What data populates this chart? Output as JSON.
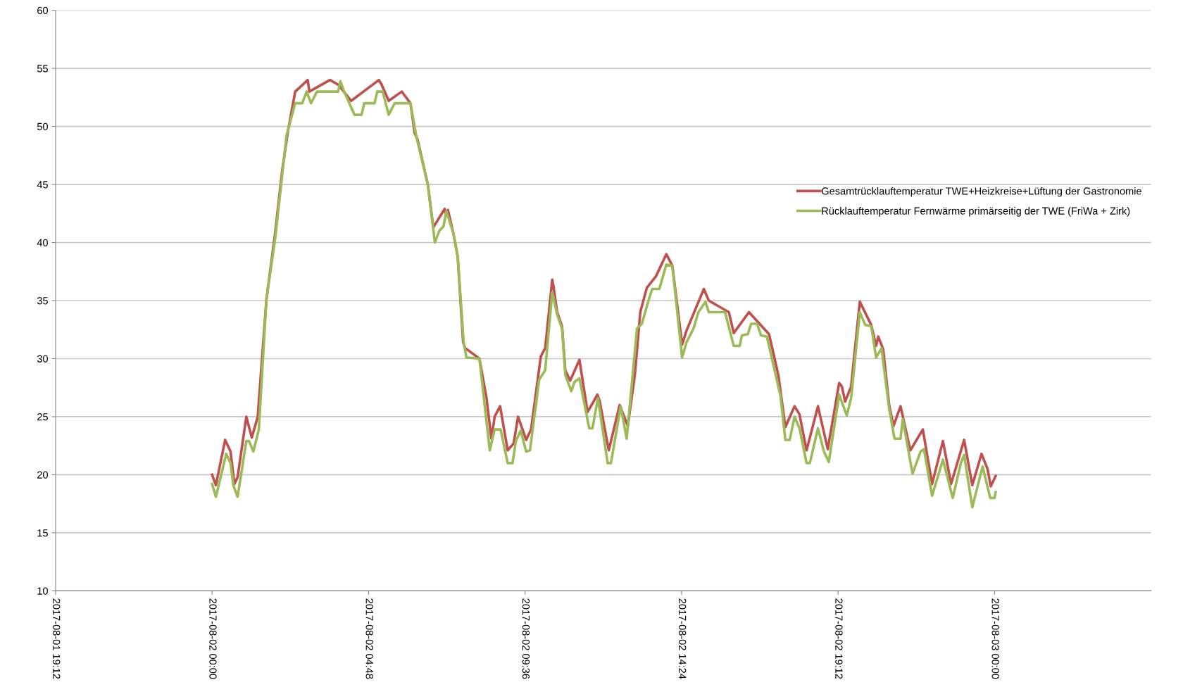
{
  "chart_data": {
    "type": "line",
    "xlim": [
      "2017-08-01T19:12",
      "2017-08-03T04:48"
    ],
    "xticks": [
      {
        "value": "2017-08-01T19:12",
        "label": "2017-08-01 19:12"
      },
      {
        "value": "2017-08-02T00:00",
        "label": "2017-08-02 00:00"
      },
      {
        "value": "2017-08-02T04:48",
        "label": "2017-08-02 04:48"
      },
      {
        "value": "2017-08-02T09:36",
        "label": "2017-08-02 09:36"
      },
      {
        "value": "2017-08-02T14:24",
        "label": "2017-08-02 14:24"
      },
      {
        "value": "2017-08-02T19:12",
        "label": "2017-08-02 19:12"
      },
      {
        "value": "2017-08-03T00:00",
        "label": "2017-08-03 00:00"
      }
    ],
    "ylim": [
      10,
      60
    ],
    "yticks": [
      10,
      15,
      20,
      25,
      30,
      35,
      40,
      45,
      50,
      55,
      60
    ],
    "grid": "y",
    "legend": "right",
    "line_style": "solid",
    "series": [
      {
        "name": "Gesamtrücklauftemperatur TWE+Heizkreise+Lüftung der Gastronomie",
        "color": "#c0504d",
        "x": [
          "2017-08-02T00:00",
          "2017-08-02T00:07",
          "2017-08-02T00:24",
          "2017-08-02T00:34",
          "2017-08-02T00:41",
          "2017-08-02T00:47",
          "2017-08-02T01:03",
          "2017-08-02T01:13",
          "2017-08-02T01:24",
          "2017-08-02T01:40",
          "2017-08-02T01:56",
          "2017-08-02T02:09",
          "2017-08-02T02:20",
          "2017-08-02T02:33",
          "2017-08-02T02:56",
          "2017-08-02T02:59",
          "2017-08-02T03:37",
          "2017-08-02T03:52",
          "2017-08-02T04:16",
          "2017-08-02T05:07",
          "2017-08-02T05:12",
          "2017-08-02T05:25",
          "2017-08-02T05:49",
          "2017-08-02T06:05",
          "2017-08-02T06:13",
          "2017-08-02T06:18",
          "2017-08-02T06:37",
          "2017-08-02T06:47",
          "2017-08-02T07:08",
          "2017-08-02T07:11",
          "2017-08-02T07:14",
          "2017-08-02T07:24",
          "2017-08-02T07:32",
          "2017-08-02T07:42",
          "2017-08-02T07:46",
          "2017-08-02T08:12",
          "2017-08-02T08:25",
          "2017-08-02T08:34",
          "2017-08-02T08:40",
          "2017-08-02T08:50",
          "2017-08-02T09:04",
          "2017-08-02T09:15",
          "2017-08-02T09:23",
          "2017-08-02T09:38",
          "2017-08-02T09:47",
          "2017-08-02T10:05",
          "2017-08-02T10:13",
          "2017-08-02T10:26",
          "2017-08-02T10:28",
          "2017-08-02T10:35",
          "2017-08-02T10:44",
          "2017-08-02T10:50",
          "2017-08-02T10:59",
          "2017-08-02T11:16",
          "2017-08-02T11:31",
          "2017-08-02T11:42",
          "2017-08-02T11:49",
          "2017-08-02T11:53",
          "2017-08-02T12:10",
          "2017-08-02T12:30",
          "2017-08-02T12:45",
          "2017-08-02T12:58",
          "2017-08-02T13:08",
          "2017-08-02T13:20",
          "2017-08-02T13:37",
          "2017-08-02T13:56",
          "2017-08-02T14:07",
          "2017-08-02T14:25",
          "2017-08-02T14:33",
          "2017-08-02T15:05",
          "2017-08-02T15:14",
          "2017-08-02T15:51",
          "2017-08-02T16:00",
          "2017-08-02T16:28",
          "2017-08-02T17:05",
          "2017-08-02T17:22",
          "2017-08-02T17:35",
          "2017-08-02T17:52",
          "2017-08-02T18:01",
          "2017-08-02T18:14",
          "2017-08-02T18:35",
          "2017-08-02T18:53",
          "2017-08-02T19:14",
          "2017-08-02T19:19",
          "2017-08-02T19:25",
          "2017-08-02T19:36",
          "2017-08-02T19:52",
          "2017-08-02T20:13",
          "2017-08-02T20:22",
          "2017-08-02T20:26",
          "2017-08-02T20:35",
          "2017-08-02T20:46",
          "2017-08-02T20:54",
          "2017-08-02T21:07",
          "2017-08-02T21:25",
          "2017-08-02T21:48",
          "2017-08-02T22:05",
          "2017-08-02T22:25",
          "2017-08-02T22:40",
          "2017-08-02T23:04",
          "2017-08-02T23:19",
          "2017-08-02T23:36",
          "2017-08-02T23:47",
          "2017-08-02T23:53",
          "2017-08-03T00:02"
        ],
        "values": [
          20,
          19.1,
          23,
          22,
          19.2,
          19.8,
          25,
          23.2,
          25,
          35.1,
          40.8,
          46.2,
          49.7,
          53,
          54,
          53,
          54,
          53.6,
          52.2,
          54,
          53.6,
          52.2,
          53,
          52,
          49.4,
          48.9,
          45,
          41.3,
          42.9,
          42.3,
          42.8,
          40.8,
          38.8,
          31.4,
          30.9,
          30,
          26.6,
          23.1,
          25,
          25.9,
          22.1,
          22.7,
          25,
          23,
          23.9,
          30.2,
          30.9,
          36.8,
          36.3,
          34,
          32.8,
          29,
          28.1,
          29.9,
          25.4,
          26.3,
          26.9,
          26.4,
          22.1,
          26,
          24.2,
          28.6,
          34,
          36.1,
          37.1,
          39,
          38,
          31.2,
          32.4,
          36,
          35,
          34,
          32.2,
          34,
          32.1,
          28.6,
          24.1,
          25.9,
          25.2,
          22.1,
          25.9,
          22.2,
          27.9,
          27.6,
          26.3,
          27.6,
          34.9,
          32.9,
          31.1,
          31.9,
          30.8,
          26,
          24.2,
          25.9,
          22.1,
          23.9,
          19.2,
          22.9,
          19.2,
          23,
          19.1,
          21.8,
          20.5,
          19,
          19.9
        ]
      },
      {
        "name": "Rücklauftemperatur Fernwärme primärseitig der TWE (FriWa + Zirk)",
        "color": "#9bbb59",
        "x": [
          "2017-08-02T00:00",
          "2017-08-02T00:07",
          "2017-08-02T00:26",
          "2017-08-02T00:34",
          "2017-08-02T00:39",
          "2017-08-02T00:47",
          "2017-08-02T01:03",
          "2017-08-02T01:08",
          "2017-08-02T01:16",
          "2017-08-02T01:26",
          "2017-08-02T01:40",
          "2017-08-02T01:56",
          "2017-08-02T02:17",
          "2017-08-02T02:33",
          "2017-08-02T02:46",
          "2017-08-02T02:54",
          "2017-08-02T03:02",
          "2017-08-02T03:13",
          "2017-08-02T03:52",
          "2017-08-02T03:56",
          "2017-08-02T04:03",
          "2017-08-02T04:22",
          "2017-08-02T04:35",
          "2017-08-02T04:40",
          "2017-08-02T04:59",
          "2017-08-02T05:04",
          "2017-08-02T05:14",
          "2017-08-02T05:25",
          "2017-08-02T05:36",
          "2017-08-02T06:05",
          "2017-08-02T06:16",
          "2017-08-02T06:37",
          "2017-08-02T06:50",
          "2017-08-02T06:58",
          "2017-08-02T07:06",
          "2017-08-02T07:11",
          "2017-08-02T07:24",
          "2017-08-02T07:32",
          "2017-08-02T07:43",
          "2017-08-02T07:48",
          "2017-08-02T08:12",
          "2017-08-02T08:31",
          "2017-08-02T08:40",
          "2017-08-02T08:51",
          "2017-08-02T09:04",
          "2017-08-02T09:13",
          "2017-08-02T09:19",
          "2017-08-02T09:28",
          "2017-08-02T09:38",
          "2017-08-02T09:45",
          "2017-08-02T10:02",
          "2017-08-02T10:13",
          "2017-08-02T10:26",
          "2017-08-02T10:35",
          "2017-08-02T10:44",
          "2017-08-02T10:50",
          "2017-08-02T11:01",
          "2017-08-02T11:07",
          "2017-08-02T11:16",
          "2017-08-02T11:34",
          "2017-08-02T11:40",
          "2017-08-02T11:50",
          "2017-08-02T12:08",
          "2017-08-02T12:14",
          "2017-08-02T12:32",
          "2017-08-02T12:43",
          "2017-08-02T13:02",
          "2017-08-02T13:11",
          "2017-08-02T13:23",
          "2017-08-02T13:30",
          "2017-08-02T13:43",
          "2017-08-02T13:56",
          "2017-08-02T14:07",
          "2017-08-02T14:25",
          "2017-08-02T14:33",
          "2017-08-02T14:46",
          "2017-08-02T14:55",
          "2017-08-02T15:08",
          "2017-08-02T15:14",
          "2017-08-02T15:44",
          "2017-08-02T16:00",
          "2017-08-02T16:11",
          "2017-08-02T16:15",
          "2017-08-02T16:26",
          "2017-08-02T16:32",
          "2017-08-02T16:43",
          "2017-08-02T16:50",
          "2017-08-02T17:01",
          "2017-08-02T17:26",
          "2017-08-02T17:35",
          "2017-08-02T17:43",
          "2017-08-02T17:52",
          "2017-08-02T18:01",
          "2017-08-02T18:14",
          "2017-08-02T18:20",
          "2017-08-02T18:35",
          "2017-08-02T18:46",
          "2017-08-02T18:55",
          "2017-08-02T19:14",
          "2017-08-02T19:28",
          "2017-08-02T19:36",
          "2017-08-02T19:52",
          "2017-08-02T20:02",
          "2017-08-02T20:13",
          "2017-08-02T20:22",
          "2017-08-02T20:32",
          "2017-08-02T20:46",
          "2017-08-02T20:56",
          "2017-08-02T21:07",
          "2017-08-02T21:11",
          "2017-08-02T21:29",
          "2017-08-02T21:44",
          "2017-08-02T21:50",
          "2017-08-02T22:05",
          "2017-08-02T22:25",
          "2017-08-02T22:43",
          "2017-08-02T22:58",
          "2017-08-02T23:04",
          "2017-08-02T23:19",
          "2017-08-02T23:38",
          "2017-08-02T23:52",
          "2017-08-03T00:00",
          "2017-08-03T00:02"
        ],
        "values": [
          19.2,
          18.1,
          21.8,
          21,
          19.1,
          18.1,
          22.9,
          22.9,
          22,
          23.9,
          35.1,
          40.3,
          49.2,
          52,
          52,
          53,
          52,
          53,
          53,
          53.9,
          53,
          51,
          51,
          52,
          52,
          53,
          53,
          51,
          52,
          52,
          49.1,
          45,
          40,
          41,
          41.4,
          42.7,
          40.8,
          38.8,
          31.4,
          30.1,
          30,
          22.1,
          23.9,
          23.9,
          21,
          21,
          22.9,
          23.8,
          22,
          22.1,
          28.2,
          29,
          35.7,
          33.8,
          32.6,
          28.6,
          27.2,
          28,
          28.3,
          24,
          24,
          26.6,
          21,
          21,
          25.9,
          23.1,
          32.6,
          33,
          35,
          36,
          36,
          38.1,
          38,
          30.1,
          31.4,
          32.6,
          34,
          34.9,
          34,
          34,
          31.1,
          31.1,
          32,
          32.1,
          33,
          33,
          32,
          31.9,
          26.8,
          23,
          23,
          25,
          24,
          21,
          21,
          24,
          22,
          21.1,
          26.9,
          25.1,
          26.6,
          34,
          32.9,
          32.8,
          30.1,
          30.9,
          25.7,
          23.1,
          23.1,
          24.8,
          20.1,
          22,
          22.2,
          18.2,
          21.3,
          18,
          21,
          21.7,
          17.2,
          20.7,
          18,
          18,
          18.5
        ]
      }
    ]
  }
}
